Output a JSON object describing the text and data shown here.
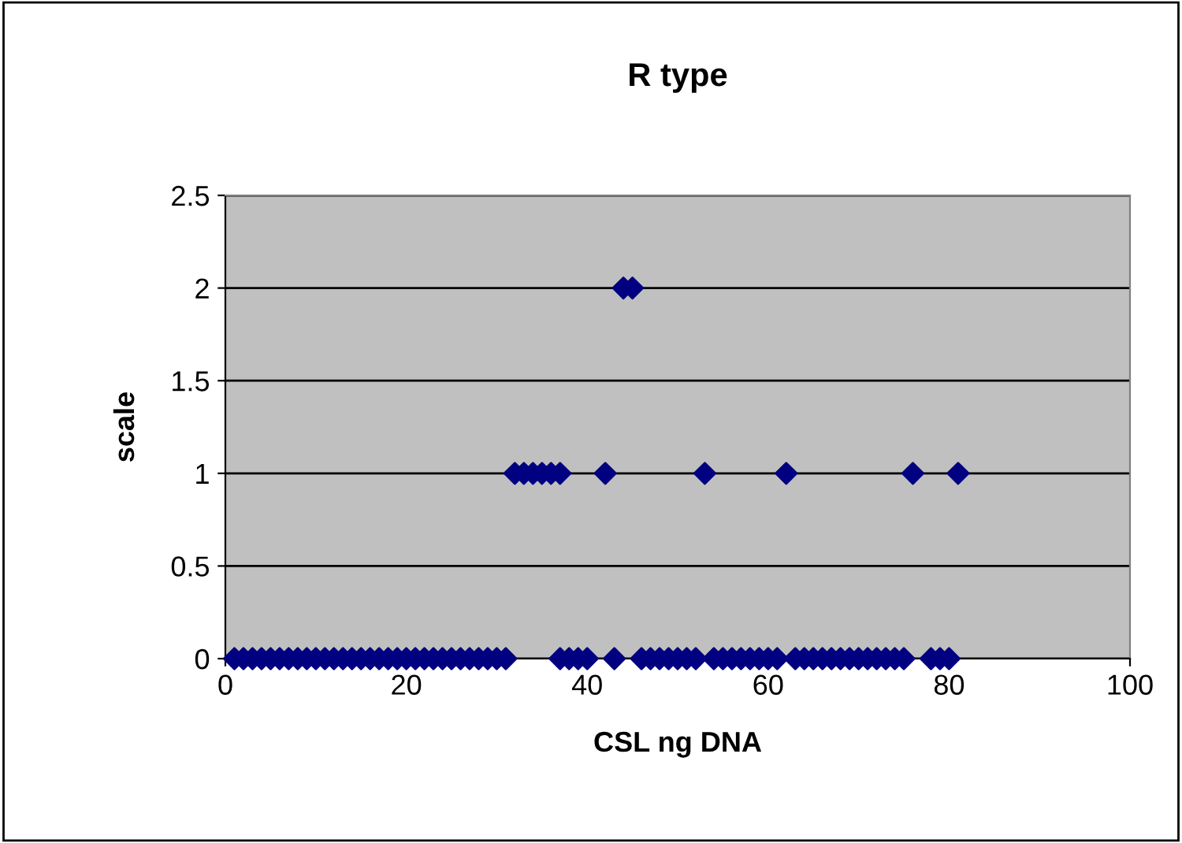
{
  "chart_data": {
    "type": "scatter",
    "title": "R type",
    "xlabel": "CSL ng DNA",
    "ylabel": "scale",
    "series": [
      {
        "color": "#000080",
        "x": [
          1,
          2,
          3,
          4,
          5,
          6,
          7,
          8,
          9,
          10,
          11,
          12,
          13,
          14,
          15,
          16,
          17,
          18,
          19,
          20,
          21,
          22,
          23,
          24,
          25,
          26,
          27,
          28,
          29,
          30,
          31,
          37,
          38,
          39,
          40,
          43,
          46,
          47,
          48,
          49,
          50,
          51,
          52,
          54,
          55,
          56,
          57,
          58,
          59,
          60,
          61,
          63,
          64,
          65,
          66,
          67,
          68,
          69,
          70,
          71,
          72,
          73,
          74,
          75,
          78,
          79,
          80,
          32,
          33,
          34,
          35,
          36,
          37,
          42,
          53,
          62,
          76,
          81,
          44,
          45
        ],
        "values": [
          0,
          0,
          0,
          0,
          0,
          0,
          0,
          0,
          0,
          0,
          0,
          0,
          0,
          0,
          0,
          0,
          0,
          0,
          0,
          0,
          0,
          0,
          0,
          0,
          0,
          0,
          0,
          0,
          0,
          0,
          0,
          0,
          0,
          0,
          0,
          0,
          0,
          0,
          0,
          0,
          0,
          0,
          0,
          0,
          0,
          0,
          0,
          0,
          0,
          0,
          0,
          0,
          0,
          0,
          0,
          0,
          0,
          0,
          0,
          0,
          0,
          0,
          0,
          0,
          0,
          0,
          0,
          1,
          1,
          1,
          1,
          1,
          1,
          1,
          1,
          1,
          1,
          1,
          2,
          2
        ]
      }
    ],
    "xlim": [
      0,
      100
    ],
    "xticks": [
      0,
      20,
      40,
      60,
      80,
      100
    ],
    "ylim": [
      0,
      2.5
    ],
    "yticks": [
      0,
      0.5,
      1,
      1.5,
      2,
      2.5
    ],
    "grid": "y",
    "marker": "diamond",
    "legend": false
  }
}
